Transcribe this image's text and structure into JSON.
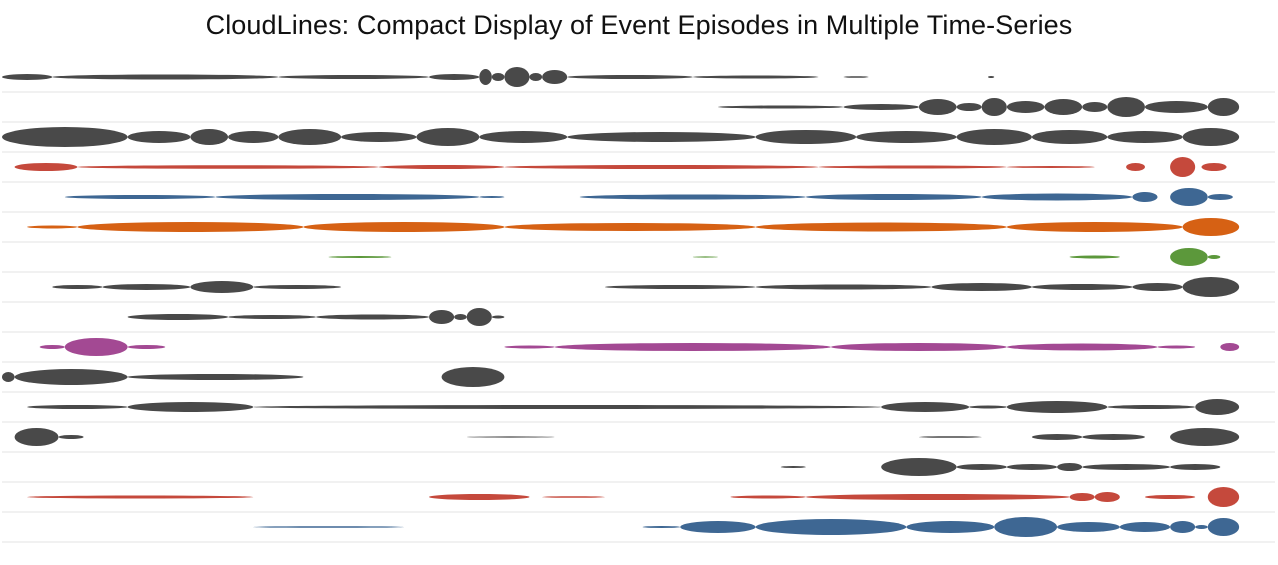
{
  "title": "CloudLines: Compact Display of Event Episodes in Multiple Time-Series",
  "palette": {
    "dark": "#3a3a3a",
    "red": "#c0392b",
    "blue": "#2e5a8a",
    "orange": "#d35400",
    "green": "#4e8f2a",
    "magenta": "#9b3a8a",
    "separator": "#e3e3e3"
  },
  "tracks": [
    {
      "color": "dark",
      "episodes": [
        [
          0,
          0.04,
          3
        ],
        [
          0.04,
          0.22,
          2.5
        ],
        [
          0.22,
          0.34,
          2
        ],
        [
          0.34,
          0.38,
          3
        ],
        [
          0.38,
          0.39,
          8
        ],
        [
          0.39,
          0.4,
          4
        ],
        [
          0.4,
          0.42,
          10
        ],
        [
          0.42,
          0.43,
          4
        ],
        [
          0.43,
          0.45,
          7
        ],
        [
          0.45,
          0.55,
          2
        ],
        [
          0.55,
          0.65,
          1.5
        ],
        [
          0.67,
          0.69,
          0.8
        ],
        [
          0.785,
          0.79,
          1
        ]
      ]
    },
    {
      "color": "dark",
      "episodes": [
        [
          0.57,
          0.67,
          1.5
        ],
        [
          0.67,
          0.73,
          3
        ],
        [
          0.73,
          0.76,
          8
        ],
        [
          0.76,
          0.78,
          4
        ],
        [
          0.78,
          0.8,
          9
        ],
        [
          0.8,
          0.83,
          6
        ],
        [
          0.83,
          0.86,
          8
        ],
        [
          0.86,
          0.88,
          5
        ],
        [
          0.88,
          0.91,
          10
        ],
        [
          0.91,
          0.96,
          6
        ],
        [
          0.96,
          0.985,
          9
        ]
      ]
    },
    {
      "color": "dark",
      "episodes": [
        [
          0,
          0.1,
          10
        ],
        [
          0.1,
          0.15,
          6
        ],
        [
          0.15,
          0.18,
          8
        ],
        [
          0.18,
          0.22,
          6
        ],
        [
          0.22,
          0.27,
          8
        ],
        [
          0.27,
          0.33,
          5
        ],
        [
          0.33,
          0.38,
          9
        ],
        [
          0.38,
          0.45,
          6
        ],
        [
          0.45,
          0.6,
          5
        ],
        [
          0.6,
          0.68,
          7
        ],
        [
          0.68,
          0.76,
          6
        ],
        [
          0.76,
          0.82,
          8
        ],
        [
          0.82,
          0.88,
          7
        ],
        [
          0.88,
          0.94,
          6
        ],
        [
          0.94,
          0.985,
          9
        ]
      ]
    },
    {
      "color": "red",
      "episodes": [
        [
          0.01,
          0.06,
          4
        ],
        [
          0.06,
          0.3,
          1.8
        ],
        [
          0.3,
          0.4,
          2
        ],
        [
          0.4,
          0.65,
          2
        ],
        [
          0.65,
          0.8,
          1.5
        ],
        [
          0.8,
          0.87,
          1
        ],
        [
          0.895,
          0.91,
          4
        ],
        [
          0.93,
          0.95,
          10
        ],
        [
          0.955,
          0.975,
          4
        ]
      ]
    },
    {
      "color": "blue",
      "episodes": [
        [
          0.05,
          0.17,
          2
        ],
        [
          0.17,
          0.38,
          3
        ],
        [
          0.38,
          0.4,
          1
        ],
        [
          0.46,
          0.64,
          2.5
        ],
        [
          0.64,
          0.78,
          3
        ],
        [
          0.78,
          0.9,
          3.5
        ],
        [
          0.9,
          0.92,
          5
        ],
        [
          0.93,
          0.96,
          9
        ],
        [
          0.96,
          0.98,
          3
        ]
      ]
    },
    {
      "color": "orange",
      "episodes": [
        [
          0.02,
          0.06,
          1.5
        ],
        [
          0.06,
          0.24,
          5
        ],
        [
          0.24,
          0.4,
          5
        ],
        [
          0.4,
          0.6,
          4
        ],
        [
          0.6,
          0.8,
          4.5
        ],
        [
          0.8,
          0.94,
          5
        ],
        [
          0.94,
          0.985,
          9
        ]
      ]
    },
    {
      "color": "green",
      "episodes": [
        [
          0.26,
          0.31,
          1
        ],
        [
          0.55,
          0.57,
          0.6
        ],
        [
          0.85,
          0.89,
          1.5
        ],
        [
          0.93,
          0.96,
          9
        ],
        [
          0.96,
          0.97,
          2
        ]
      ]
    },
    {
      "color": "dark",
      "episodes": [
        [
          0.04,
          0.08,
          2
        ],
        [
          0.08,
          0.15,
          3
        ],
        [
          0.15,
          0.2,
          6
        ],
        [
          0.2,
          0.27,
          2
        ],
        [
          0.48,
          0.6,
          2
        ],
        [
          0.6,
          0.74,
          2.5
        ],
        [
          0.74,
          0.82,
          4
        ],
        [
          0.82,
          0.9,
          3
        ],
        [
          0.9,
          0.94,
          4
        ],
        [
          0.94,
          0.985,
          10
        ]
      ]
    },
    {
      "color": "dark",
      "episodes": [
        [
          0.1,
          0.18,
          3
        ],
        [
          0.18,
          0.25,
          2
        ],
        [
          0.25,
          0.34,
          2.5
        ],
        [
          0.34,
          0.36,
          7
        ],
        [
          0.36,
          0.37,
          3
        ],
        [
          0.37,
          0.39,
          9
        ],
        [
          0.39,
          0.4,
          1.5
        ]
      ]
    },
    {
      "color": "magenta",
      "episodes": [
        [
          0.03,
          0.05,
          2
        ],
        [
          0.05,
          0.1,
          9
        ],
        [
          0.1,
          0.13,
          2
        ],
        [
          0.4,
          0.44,
          1.5
        ],
        [
          0.44,
          0.66,
          4
        ],
        [
          0.66,
          0.8,
          4
        ],
        [
          0.8,
          0.92,
          3.5
        ],
        [
          0.92,
          0.95,
          1.5
        ],
        [
          0.97,
          0.985,
          4
        ]
      ]
    },
    {
      "color": "dark",
      "episodes": [
        [
          0,
          0.01,
          5
        ],
        [
          0.01,
          0.1,
          8
        ],
        [
          0.1,
          0.24,
          3
        ],
        [
          0.35,
          0.4,
          10
        ]
      ]
    },
    {
      "color": "dark",
      "episodes": [
        [
          0.02,
          0.1,
          2
        ],
        [
          0.1,
          0.2,
          5
        ],
        [
          0.2,
          0.7,
          2
        ],
        [
          0.7,
          0.77,
          5
        ],
        [
          0.77,
          0.8,
          1.5
        ],
        [
          0.8,
          0.88,
          6
        ],
        [
          0.88,
          0.95,
          2
        ],
        [
          0.95,
          0.985,
          8
        ]
      ]
    },
    {
      "color": "dark",
      "episodes": [
        [
          0.01,
          0.045,
          9
        ],
        [
          0.045,
          0.065,
          2
        ],
        [
          0.37,
          0.44,
          0.6
        ],
        [
          0.73,
          0.78,
          0.8
        ],
        [
          0.82,
          0.86,
          3
        ],
        [
          0.86,
          0.91,
          3
        ],
        [
          0.93,
          0.985,
          9
        ]
      ]
    },
    {
      "color": "dark",
      "episodes": [
        [
          0.62,
          0.64,
          1
        ],
        [
          0.7,
          0.76,
          9
        ],
        [
          0.76,
          0.8,
          3
        ],
        [
          0.8,
          0.84,
          3
        ],
        [
          0.84,
          0.86,
          4
        ],
        [
          0.86,
          0.93,
          3
        ],
        [
          0.93,
          0.97,
          3
        ]
      ]
    },
    {
      "color": "red",
      "episodes": [
        [
          0.02,
          0.2,
          1.5
        ],
        [
          0.34,
          0.42,
          3
        ],
        [
          0.43,
          0.48,
          0.8
        ],
        [
          0.58,
          0.64,
          1.5
        ],
        [
          0.64,
          0.85,
          3
        ],
        [
          0.85,
          0.87,
          4
        ],
        [
          0.87,
          0.89,
          5
        ],
        [
          0.91,
          0.95,
          2
        ],
        [
          0.96,
          0.985,
          10
        ]
      ]
    },
    {
      "color": "blue",
      "episodes": [
        [
          0.2,
          0.32,
          0.8
        ],
        [
          0.51,
          0.54,
          1
        ],
        [
          0.54,
          0.6,
          6
        ],
        [
          0.6,
          0.72,
          8
        ],
        [
          0.72,
          0.79,
          6
        ],
        [
          0.79,
          0.84,
          10
        ],
        [
          0.84,
          0.89,
          5
        ],
        [
          0.89,
          0.93,
          5
        ],
        [
          0.93,
          0.95,
          6
        ],
        [
          0.95,
          0.96,
          2
        ],
        [
          0.96,
          0.985,
          9
        ]
      ]
    }
  ]
}
